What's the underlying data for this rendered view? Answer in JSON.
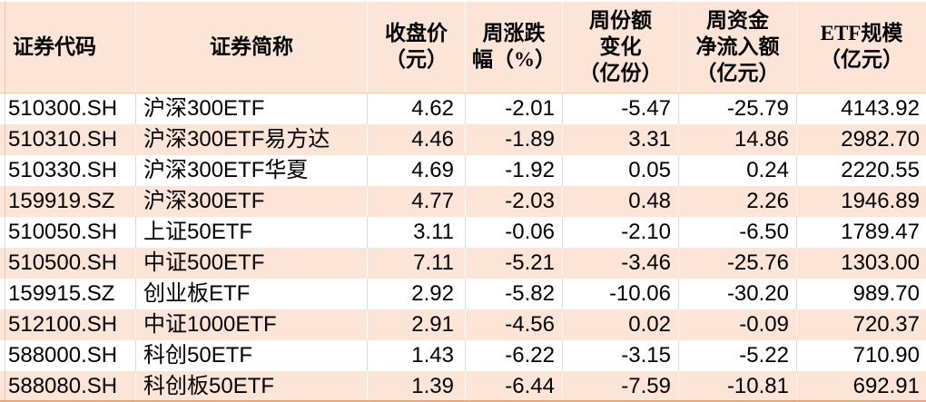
{
  "chart_data": {
    "type": "table",
    "columns": [
      {
        "key": "code",
        "label": "证券代码"
      },
      {
        "key": "name",
        "label": "证券简称"
      },
      {
        "key": "close_price",
        "label": "收盘价\n（元）"
      },
      {
        "key": "weekly_pct_change",
        "label": "周涨跌\n幅（%）"
      },
      {
        "key": "weekly_share_change",
        "label": "周份额\n变化\n（亿份）"
      },
      {
        "key": "weekly_net_inflow",
        "label": "周资金\n净流入额\n（亿元）"
      },
      {
        "key": "etf_scale",
        "label": "ETF规模\n（亿元）"
      }
    ],
    "rows": [
      [
        "510300.SH",
        "沪深300ETF",
        "4.62",
        "-2.01",
        "-5.47",
        "-25.79",
        "4143.92"
      ],
      [
        "510310.SH",
        "沪深300ETF易方达",
        "4.46",
        "-1.89",
        "3.31",
        "14.86",
        "2982.70"
      ],
      [
        "510330.SH",
        "沪深300ETF华夏",
        "4.69",
        "-1.92",
        "0.05",
        "0.24",
        "2220.55"
      ],
      [
        "159919.SZ",
        "沪深300ETF",
        "4.77",
        "-2.03",
        "0.48",
        "2.26",
        "1946.89"
      ],
      [
        "510050.SH",
        "上证50ETF",
        "3.11",
        "-0.06",
        "-2.10",
        "-6.50",
        "1789.47"
      ],
      [
        "510500.SH",
        "中证500ETF",
        "7.11",
        "-5.21",
        "-3.46",
        "-25.76",
        "1303.00"
      ],
      [
        "159915.SZ",
        "创业板ETF",
        "2.92",
        "-5.82",
        "-10.06",
        "-30.20",
        "989.70"
      ],
      [
        "512100.SH",
        "中证1000ETF",
        "2.91",
        "-4.56",
        "0.02",
        "-0.09",
        "720.37"
      ],
      [
        "588000.SH",
        "科创50ETF",
        "1.43",
        "-6.22",
        "-3.15",
        "-5.22",
        "710.90"
      ],
      [
        "588080.SH",
        "科创板50ETF",
        "1.39",
        "-6.44",
        "-7.59",
        "-10.81",
        "692.91"
      ]
    ]
  },
  "style": {
    "header_bg": "#fce4d6",
    "row_bg": "#ffffff",
    "row_alt_bg": "#fce4d6",
    "grid_line_gray": "#d9d9d9",
    "header_divider": "#f2ccae",
    "bottom_border": "#f2a469",
    "text_color": "#000000"
  }
}
